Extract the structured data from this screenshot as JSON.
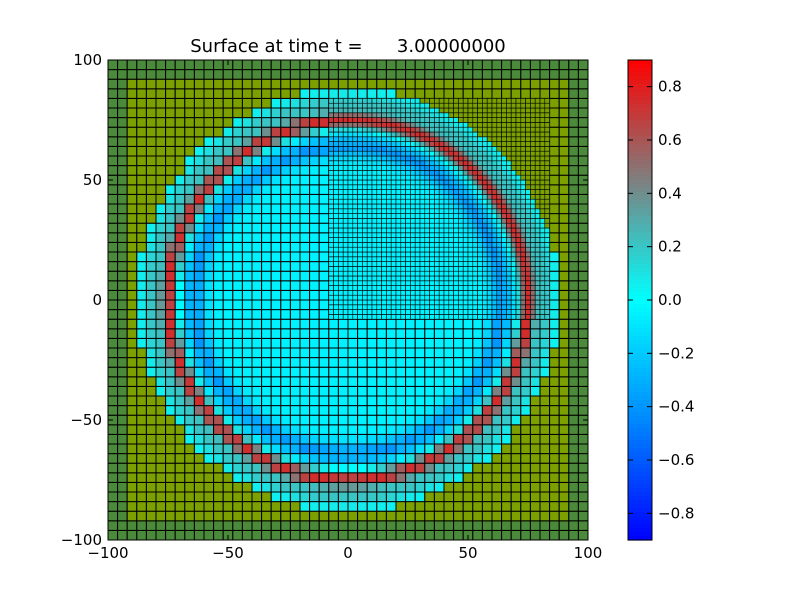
{
  "chart_data": {
    "type": "heatmap",
    "title": "Surface at time t =      3.00000000",
    "xlabel": "",
    "ylabel": "",
    "xlim": [
      -100,
      100
    ],
    "ylim": [
      -100,
      100
    ],
    "x_ticks": [
      -100,
      -50,
      0,
      50,
      100
    ],
    "y_ticks": [
      -100,
      -50,
      0,
      50,
      100
    ],
    "x_tick_labels": [
      "−100",
      "−50",
      "0",
      "50",
      "100"
    ],
    "y_tick_labels": [
      "−100",
      "−50",
      "0",
      "50",
      "100"
    ],
    "grid": "cell edges drawn in black",
    "land_color": "#7ba000",
    "dry_land_color": "#4a8a3a",
    "surface_model": {
      "description": "circular wave ring: crest ring (positive) with trough inside and outside",
      "crest_radius": 75,
      "crest_value": 0.7,
      "inner_trough_radius": 65,
      "inner_trough_value": -0.35,
      "interior_value": -0.05,
      "land_radius": 88
    },
    "coarse_grid": {
      "x_start": -100,
      "x_end": 100,
      "y_start": -100,
      "y_end": 100,
      "cell": 4
    },
    "refined_patch": {
      "x_range": [
        -8,
        84
      ],
      "y_range": [
        -8,
        84
      ],
      "cell": 2
    },
    "colorbar": {
      "vmin": -0.9,
      "vmax": 0.9,
      "ticks": [
        0.8,
        0.6,
        0.4,
        0.2,
        0.0,
        -0.2,
        -0.4,
        -0.6,
        -0.8
      ],
      "tick_labels": [
        "0.8",
        "0.6",
        "0.4",
        "0.2",
        "0.0",
        "−0.2",
        "−0.4",
        "−0.6",
        "−0.8"
      ],
      "colormap": [
        {
          "v": -0.9,
          "color": "#0000ff"
        },
        {
          "v": -0.45,
          "color": "#0088ff"
        },
        {
          "v": 0.0,
          "color": "#00ffff"
        },
        {
          "v": 0.45,
          "color": "#7f7f7f"
        },
        {
          "v": 0.9,
          "color": "#ff0000"
        }
      ]
    }
  }
}
